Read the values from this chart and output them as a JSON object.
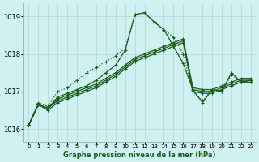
{
  "title": "Graphe pression niveau de la mer (hPa)",
  "background_color": "#cff1f1",
  "grid_color": "#b8dede",
  "line_color": "#1a5c1a",
  "xlim": [
    -0.5,
    23.5
  ],
  "ylim": [
    1015.65,
    1019.35
  ],
  "yticks": [
    1016,
    1017,
    1018,
    1019
  ],
  "xtick_labels": [
    "0",
    "1",
    "2",
    "3",
    "4",
    "5",
    "6",
    "7",
    "8",
    "9",
    "10",
    "11",
    "12",
    "13",
    "14",
    "15",
    "16",
    "17",
    "18",
    "19",
    "20",
    "21",
    "22",
    "23"
  ],
  "series_dotted_x": [
    0,
    1,
    2,
    3,
    4,
    5,
    6,
    7,
    8,
    9,
    10,
    11,
    12,
    13,
    14,
    15,
    16,
    17,
    18,
    19,
    20,
    21,
    22,
    23
  ],
  "series_dotted_y": [
    1016.1,
    1016.7,
    1016.6,
    1017.0,
    1017.1,
    1017.3,
    1017.5,
    1017.65,
    1017.8,
    1017.95,
    1018.15,
    1019.05,
    1019.1,
    1018.85,
    1018.65,
    1018.45,
    1018.0,
    1017.0,
    1016.75,
    1017.05,
    1017.0,
    1017.45,
    1017.25,
    1017.3
  ],
  "series_solid1_x": [
    0,
    1,
    2,
    3,
    4,
    5,
    6,
    7,
    8,
    9,
    10,
    11,
    12,
    13,
    14,
    15,
    16,
    17,
    18,
    19,
    20,
    21,
    22,
    23
  ],
  "series_solid1_y": [
    1016.1,
    1016.65,
    1016.55,
    1016.8,
    1016.9,
    1017.0,
    1017.1,
    1017.2,
    1017.35,
    1017.5,
    1017.7,
    1017.9,
    1018.0,
    1018.1,
    1018.2,
    1018.3,
    1018.4,
    1017.1,
    1017.05,
    1017.05,
    1017.15,
    1017.25,
    1017.35,
    1017.35
  ],
  "series_solid2_x": [
    0,
    1,
    2,
    3,
    4,
    5,
    6,
    7,
    8,
    9,
    10,
    11,
    12,
    13,
    14,
    15,
    16,
    17,
    18,
    19,
    20,
    21,
    22,
    23
  ],
  "series_solid2_y": [
    1016.1,
    1016.65,
    1016.55,
    1016.75,
    1016.85,
    1016.95,
    1017.05,
    1017.15,
    1017.3,
    1017.45,
    1017.65,
    1017.85,
    1017.95,
    1018.05,
    1018.15,
    1018.25,
    1018.35,
    1017.05,
    1017.0,
    1017.0,
    1017.1,
    1017.2,
    1017.3,
    1017.3
  ],
  "series_solid3_x": [
    0,
    1,
    2,
    3,
    4,
    5,
    6,
    7,
    8,
    9,
    10,
    11,
    12,
    13,
    14,
    15,
    16,
    17,
    18,
    19,
    20,
    21,
    22,
    23
  ],
  "series_solid3_y": [
    1016.1,
    1016.65,
    1016.5,
    1016.7,
    1016.8,
    1016.9,
    1017.0,
    1017.1,
    1017.25,
    1017.4,
    1017.6,
    1017.8,
    1017.9,
    1018.0,
    1018.1,
    1018.2,
    1018.3,
    1017.0,
    1016.95,
    1016.95,
    1017.05,
    1017.15,
    1017.25,
    1017.25
  ],
  "series_peak_x": [
    0,
    1,
    2,
    3,
    4,
    5,
    6,
    7,
    8,
    9,
    10,
    11,
    12,
    13,
    14,
    15,
    16,
    17,
    18,
    19,
    20,
    21,
    22,
    23
  ],
  "series_peak_y": [
    1016.1,
    1016.65,
    1016.55,
    1016.85,
    1016.95,
    1017.05,
    1017.15,
    1017.3,
    1017.5,
    1017.7,
    1018.1,
    1019.05,
    1019.1,
    1018.85,
    1018.65,
    1018.2,
    1017.75,
    1017.05,
    1016.7,
    1017.05,
    1017.0,
    1017.5,
    1017.25,
    1017.3
  ]
}
